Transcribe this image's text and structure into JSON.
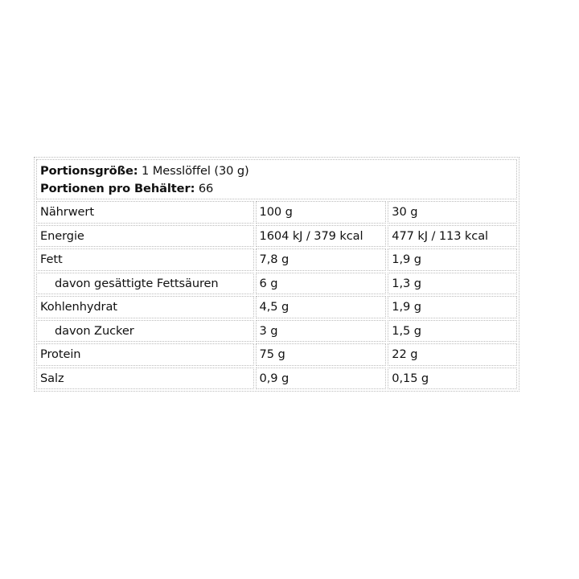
{
  "header": {
    "serving_size_label": "Portionsgröße:",
    "serving_size_value": "1 Messlöffel (30 g)",
    "servings_label": "Portionen pro Behälter:",
    "servings_value": "66"
  },
  "columns": [
    "Nährwert",
    "100 g",
    "30 g"
  ],
  "rows": [
    {
      "name": "Energie",
      "per100": "1604 kJ / 379 kcal",
      "perServing": "477 kJ / 113 kcal",
      "indent": false
    },
    {
      "name": "Fett",
      "per100": "7,8 g",
      "perServing": "1,9 g",
      "indent": false
    },
    {
      "name": "davon gesättigte Fettsäuren",
      "per100": "6 g",
      "perServing": "1,3 g",
      "indent": true
    },
    {
      "name": "Kohlenhydrat",
      "per100": "4,5 g",
      "perServing": "1,9 g",
      "indent": false
    },
    {
      "name": "davon Zucker",
      "per100": "3 g",
      "perServing": "1,5 g",
      "indent": true
    },
    {
      "name": "Protein",
      "per100": "75 g",
      "perServing": "22 g",
      "indent": false
    },
    {
      "name": "Salz",
      "per100": "0,9 g",
      "perServing": "0,15 g",
      "indent": false
    }
  ]
}
